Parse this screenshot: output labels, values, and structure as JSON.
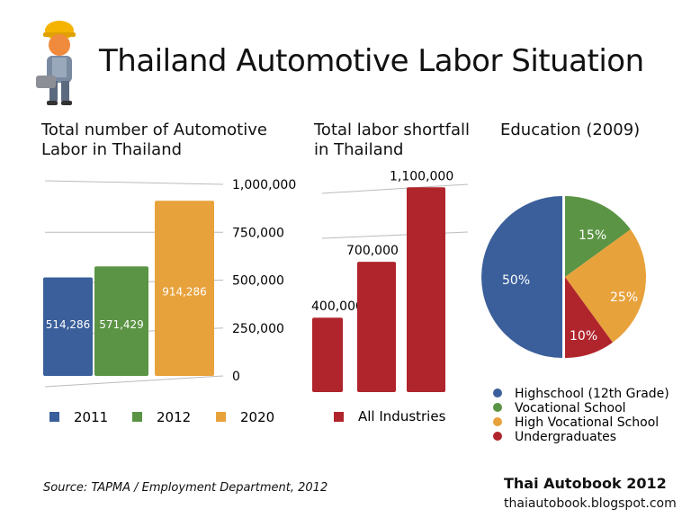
{
  "title": "Thailand Automotive Labor Situation",
  "icon": "construction-worker-icon",
  "source": "Source: TAPMA / Employment Department, 2012",
  "brand": "Thai Autobook 2012",
  "url": "thaiautobook.blogspot.com",
  "chart_data": [
    {
      "type": "bar",
      "title": "Total number of Automotive Labor in Thailand",
      "title_lines": [
        "Total number of Automotive",
        "Labor in Thailand"
      ],
      "categories": [
        "2011",
        "2012",
        "2020"
      ],
      "values": [
        514286,
        571429,
        914286
      ],
      "data_labels": [
        "514,286",
        "571,429",
        "914,286"
      ],
      "colors": [
        "#3a5f9a",
        "#5b9444",
        "#e8a23c"
      ],
      "ylim": [
        0,
        1000000
      ],
      "yticks": [
        "0",
        "250,000",
        "500,000",
        "750,000",
        "1,000,000"
      ],
      "grid": true,
      "legend": "bottom"
    },
    {
      "type": "bar",
      "title": "Total labor shortfall in Thailand",
      "title_lines": [
        "Total labor shortfall",
        "in Thailand"
      ],
      "categories": [
        "",
        "",
        ""
      ],
      "series": [
        {
          "name": "All Industries",
          "values": [
            400000,
            700000,
            1100000
          ]
        }
      ],
      "data_labels": [
        "400,000",
        "700,000",
        "1,100,000"
      ],
      "color": "#b0252c",
      "legend": "bottom"
    },
    {
      "type": "pie",
      "title": "Education (2009)",
      "categories": [
        "Highschool (12th Grade)",
        "Vocational School",
        "High Vocational School",
        "Undergraduates"
      ],
      "values": [
        50,
        15,
        25,
        10
      ],
      "data_labels": [
        "50%",
        "15%",
        "25%",
        "10%"
      ],
      "colors": [
        "#3a5f9a",
        "#5b9444",
        "#e8a23c",
        "#b0252c"
      ],
      "legend": "bottom"
    }
  ]
}
